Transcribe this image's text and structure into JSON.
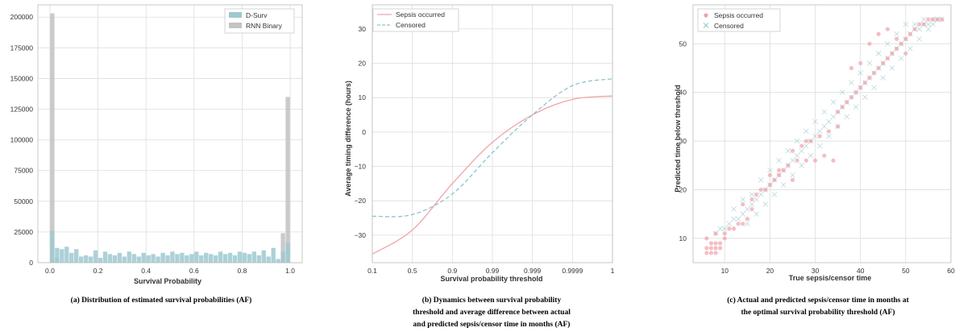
{
  "captions": {
    "a": "(a) Distribution of estimated survival probabilities (AF)",
    "b_line1": "(b) Dynamics between survival probability",
    "b_line2": "threshold and  average difference between actual",
    "b_line3": "and predicted sepsis/censor time in months (AF)",
    "c_line1": "(c) Actual and predicted sepsis/censor time in months at",
    "c_line2": "the optimal survival probability threshold (AF)"
  },
  "colors": {
    "dsurv": "#9ec9d0",
    "rnn": "#c4c4c4",
    "sepsis": "#f0a3a8",
    "censored": "#8fc4cc",
    "grid": "#dddddd",
    "axis": "#555555"
  },
  "chart_data": [
    {
      "id": "a",
      "type": "bar",
      "title": "",
      "xlabel": "Survival Probability",
      "ylabel": "",
      "xlim": [
        -0.05,
        1.05
      ],
      "ylim": [
        0,
        210000
      ],
      "xticks": [
        0.0,
        0.2,
        0.4,
        0.6,
        0.8,
        1.0
      ],
      "xtick_labels": [
        "0.0",
        "0.2",
        "0.4",
        "0.6",
        "0.8",
        "1.0"
      ],
      "yticks": [
        0,
        25000,
        50000,
        75000,
        100000,
        125000,
        150000,
        175000,
        200000
      ],
      "ytick_labels": [
        "0",
        "25000",
        "50000",
        "75000",
        "100000",
        "125000",
        "150000",
        "175000",
        "200000"
      ],
      "grid": true,
      "legend": "top-right",
      "bin_width": 0.02,
      "series": [
        {
          "name": "D-Surv",
          "bin_starts": [
            0.0,
            0.02,
            0.04,
            0.06,
            0.08,
            0.1,
            0.12,
            0.14,
            0.16,
            0.18,
            0.2,
            0.22,
            0.24,
            0.26,
            0.28,
            0.3,
            0.32,
            0.34,
            0.36,
            0.38,
            0.4,
            0.42,
            0.44,
            0.46,
            0.48,
            0.5,
            0.52,
            0.54,
            0.56,
            0.58,
            0.6,
            0.62,
            0.64,
            0.66,
            0.68,
            0.7,
            0.72,
            0.74,
            0.76,
            0.78,
            0.8,
            0.82,
            0.84,
            0.86,
            0.88,
            0.9,
            0.92,
            0.94,
            0.96,
            0.98
          ],
          "values": [
            26000,
            12000,
            11000,
            13000,
            8000,
            11000,
            5000,
            6000,
            5000,
            10000,
            4000,
            9000,
            7000,
            6000,
            8000,
            5000,
            9000,
            7000,
            5000,
            8000,
            6000,
            7000,
            5000,
            8000,
            6000,
            9000,
            7000,
            8000,
            6000,
            7000,
            9000,
            6000,
            8000,
            7000,
            6000,
            9000,
            7000,
            8000,
            6000,
            9000,
            8000,
            7000,
            9000,
            6000,
            10000,
            5000,
            12000,
            3000,
            9000,
            16000
          ]
        },
        {
          "name": "RNN Binary",
          "bin_starts": [
            0.0,
            0.02,
            0.96,
            0.98
          ],
          "values": [
            203000,
            4000,
            24000,
            135000
          ]
        }
      ]
    },
    {
      "id": "b",
      "type": "line",
      "title": "",
      "xlabel": "Survival probability threshold",
      "ylabel": "Average timing difference (hours)",
      "categories": [
        "0.1",
        "0.5",
        "0.9",
        "0.99",
        "0.999",
        "0.9999",
        "1"
      ],
      "ylim": [
        -38,
        37
      ],
      "yticks": [
        -30,
        -20,
        -10,
        0,
        10,
        20,
        30
      ],
      "ytick_labels": [
        "−30",
        "−20",
        "−10",
        "0",
        "10",
        "20",
        "30"
      ],
      "grid": true,
      "legend": "top-left",
      "series": [
        {
          "name": "Sepsis occurred",
          "style": "solid",
          "values": [
            -35.5,
            -28.5,
            -15,
            -3,
            5,
            9.5,
            10.5
          ]
        },
        {
          "name": "Censored",
          "style": "dashed",
          "values": [
            -24.5,
            -24,
            -18,
            -6,
            5,
            13.5,
            15.5
          ]
        }
      ]
    },
    {
      "id": "c",
      "type": "scatter",
      "title": "",
      "xlabel": "True sepsis/censor time",
      "ylabel": "Predicted time below threshold",
      "xlim": [
        3,
        60
      ],
      "ylim": [
        5,
        58
      ],
      "xticks": [
        10,
        20,
        30,
        40,
        50,
        60
      ],
      "xtick_labels": [
        "10",
        "20",
        "30",
        "40",
        "50",
        "60"
      ],
      "yticks": [
        10,
        20,
        30,
        40,
        50
      ],
      "ytick_labels": [
        "10",
        "20",
        "30",
        "40",
        "50"
      ],
      "grid": true,
      "legend": "top-left",
      "series": [
        {
          "name": "Sepsis occurred",
          "marker": "circle",
          "x": [
            6,
            7,
            8,
            6,
            7,
            8,
            9,
            7,
            8,
            9,
            10,
            6,
            8,
            10,
            11,
            12,
            13,
            14,
            15,
            16,
            14,
            16,
            17,
            18,
            19,
            20,
            21,
            22,
            23,
            24,
            26,
            28,
            30,
            32,
            34,
            20,
            22,
            25,
            27,
            29,
            31,
            33,
            35,
            36,
            37,
            38,
            39,
            40,
            41,
            42,
            43,
            44,
            45,
            46,
            47,
            48,
            49,
            50,
            51,
            52,
            53,
            54,
            55,
            56,
            57,
            58,
            38,
            40,
            42,
            44,
            46,
            48,
            50,
            35,
            28,
            25
          ],
          "y": [
            7,
            7,
            7,
            8,
            8,
            8,
            8,
            9,
            9,
            9,
            10,
            10,
            11,
            11,
            12,
            12,
            13,
            13,
            14,
            16,
            17,
            18,
            19,
            20,
            20,
            21,
            22,
            23,
            24,
            25,
            26,
            26,
            26,
            27,
            26,
            23,
            24,
            28,
            29,
            30,
            31,
            32,
            36,
            37,
            38,
            39,
            40,
            41,
            42,
            43,
            44,
            45,
            46,
            47,
            48,
            49,
            50,
            51,
            52,
            53,
            54,
            54,
            55,
            55,
            55,
            55,
            45,
            46,
            50,
            52,
            53,
            51,
            48,
            33,
            30,
            22
          ]
        },
        {
          "name": "Censored",
          "marker": "x",
          "x": [
            8,
            9,
            10,
            11,
            12,
            13,
            14,
            15,
            16,
            17,
            18,
            19,
            20,
            21,
            22,
            23,
            24,
            25,
            26,
            27,
            28,
            29,
            30,
            31,
            32,
            33,
            34,
            35,
            36,
            37,
            38,
            39,
            40,
            41,
            42,
            43,
            44,
            45,
            46,
            47,
            48,
            49,
            50,
            51,
            52,
            53,
            54,
            55,
            56,
            57,
            58,
            12,
            14,
            16,
            18,
            20,
            22,
            24,
            26,
            28,
            30,
            32,
            34,
            36,
            38,
            40,
            42,
            44,
            46,
            48,
            50,
            52,
            54,
            56,
            15,
            17,
            19,
            21,
            23,
            25,
            27,
            29,
            31,
            33,
            35,
            37,
            39,
            41,
            43,
            45,
            47,
            49,
            51,
            53,
            55,
            57
          ],
          "y": [
            11,
            12,
            12,
            13,
            14,
            14,
            15,
            16,
            17,
            18,
            19,
            20,
            21,
            22,
            23,
            24,
            25,
            26,
            27,
            28,
            29,
            30,
            31,
            32,
            33,
            34,
            35,
            36,
            37,
            38,
            39,
            40,
            41,
            42,
            43,
            44,
            45,
            46,
            47,
            48,
            49,
            50,
            51,
            52,
            53,
            53,
            54,
            54,
            55,
            55,
            55,
            16,
            18,
            19,
            22,
            24,
            26,
            28,
            30,
            32,
            34,
            36,
            38,
            40,
            42,
            44,
            46,
            48,
            50,
            52,
            54,
            54,
            55,
            54,
            13,
            15,
            17,
            19,
            21,
            23,
            25,
            27,
            29,
            31,
            33,
            35,
            37,
            39,
            41,
            43,
            45,
            47,
            49,
            51,
            53,
            55
          ]
        }
      ]
    }
  ]
}
